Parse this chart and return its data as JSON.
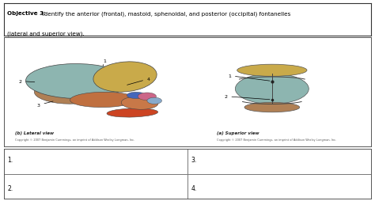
{
  "bg_color": "#ffffff",
  "main_bg": "#f0f0eb",
  "border_color": "#555555",
  "table_labels": [
    "1.",
    "2.",
    "3.",
    "4."
  ],
  "lateral_label": "(b) Lateral view",
  "superior_label": "(a) Superior view",
  "copyright_text": "Copyright © 2007 Benjamin Cummings, an imprint of Addison Wesley Longman, Inc.",
  "header_line1_bold": "Objective 3:",
  "header_line1_rest": "  Identify the anterior (frontal), mastoid, sphenoidal, and posterior (occipital) fontanelles",
  "header_line2": "(lateral and superior view).",
  "colors": {
    "parietal_lat": "#8db5b0",
    "frontal_lat": "#c9aa4a",
    "occipital_lat": "#b08055",
    "temporal_lat": "#c07040",
    "mandible": "#cc4422",
    "sphenoid": "#4466bb",
    "nasal": "#cc6688",
    "light_blue": "#88aacc",
    "parietal_sup": "#8db5b0",
    "frontal_sup": "#c9aa4a",
    "occipital_sup": "#b08055"
  }
}
